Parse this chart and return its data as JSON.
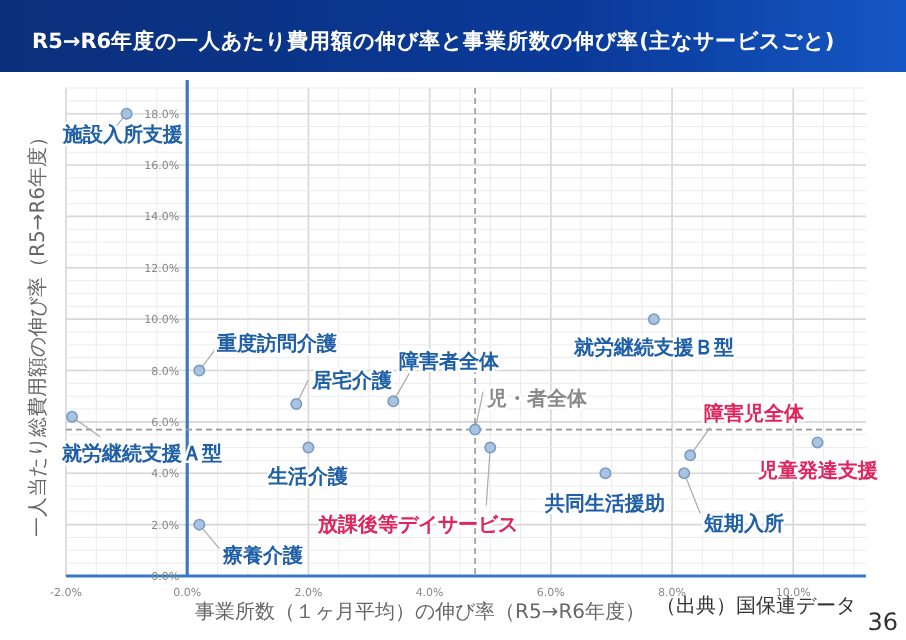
{
  "chart_data": {
    "type": "scatter",
    "title": "R5→R6年度の一人あたり費用額の伸び率と事業所数の伸び率(主なサービスごと)",
    "xlabel": "事業所数（１ヶ月平均）の伸び率（R5→R6年度）",
    "ylabel": "一人当たり総費用額の伸び率（R5→R6年度）",
    "xlim": [
      -2,
      11.2
    ],
    "ylim": [
      0,
      19
    ],
    "xticks": [
      {
        "value": -2,
        "label": "-2.0%"
      },
      {
        "value": 0,
        "label": "0.0%"
      },
      {
        "value": 2,
        "label": "2.0%"
      },
      {
        "value": 4,
        "label": "4.0%"
      },
      {
        "value": 6,
        "label": "6.0%"
      },
      {
        "value": 8,
        "label": "8.0%"
      },
      {
        "value": 10,
        "label": "10.0%"
      }
    ],
    "yticks": [
      {
        "value": 0,
        "label": "0.0%"
      },
      {
        "value": 2,
        "label": "2.0%"
      },
      {
        "value": 4,
        "label": "4.0%"
      },
      {
        "value": 6,
        "label": "6.0%"
      },
      {
        "value": 8,
        "label": "8.0%"
      },
      {
        "value": 10,
        "label": "10.0%"
      },
      {
        "value": 12,
        "label": "12.0%"
      },
      {
        "value": 14,
        "label": "14.0%"
      },
      {
        "value": 16,
        "label": "16.0%"
      },
      {
        "value": 18,
        "label": "18.0%"
      }
    ],
    "grid": true,
    "marker": "circle",
    "series": [
      {
        "color": "#a9c4e0",
        "x": [
          -1.0,
          0.2,
          1.8,
          3.4,
          -1.9,
          2.0,
          0.2,
          6.9,
          8.2,
          7.7
        ],
        "values": [
          18.0,
          8.0,
          6.7,
          6.8,
          6.2,
          5.0,
          2.0,
          4.0,
          4.0,
          10.0
        ]
      },
      {
        "color": "#a9c4e0",
        "x": [
          5.0,
          8.3,
          10.4
        ],
        "values": [
          5.0,
          4.7,
          5.2
        ]
      },
      {
        "color": "#a9c4e0",
        "x": [
          4.75
        ],
        "values": [
          5.7
        ]
      }
    ],
    "ref_lines": [
      {
        "axis": "x",
        "value": 4.75,
        "line_style": "dashed",
        "color": "#999999"
      },
      {
        "axis": "y",
        "value": 5.7,
        "line_style": "dashed",
        "color": "#999999"
      }
    ],
    "annotations": [
      {
        "text": "施設入所支援",
        "x": -1.0,
        "y": 18.0
      },
      {
        "text": "重度訪問介護",
        "x": 0.2,
        "y": 8.0
      },
      {
        "text": "居宅介護",
        "x": 1.8,
        "y": 6.7
      },
      {
        "text": "障害者全体",
        "x": 3.4,
        "y": 6.8
      },
      {
        "text": "就労継続支援Ａ型",
        "x": -1.9,
        "y": 6.2
      },
      {
        "text": "生活介護",
        "x": 2.0,
        "y": 5.0
      },
      {
        "text": "療養介護",
        "x": 0.2,
        "y": 2.0
      },
      {
        "text": "共同生活援助",
        "x": 6.9,
        "y": 4.0
      },
      {
        "text": "短期入所",
        "x": 8.2,
        "y": 4.0
      },
      {
        "text": "就労継続支援Ｂ型",
        "x": 7.7,
        "y": 10.0
      },
      {
        "text": "放課後等デイサービス",
        "x": 5.0,
        "y": 5.0
      },
      {
        "text": "障害児全体",
        "x": 8.3,
        "y": 4.7
      },
      {
        "text": "児童発達支援",
        "x": 10.4,
        "y": 5.2
      },
      {
        "text": "児・者全体",
        "x": 4.75,
        "y": 5.7
      },
      "（出典）国保連データ",
      "36"
    ]
  }
}
